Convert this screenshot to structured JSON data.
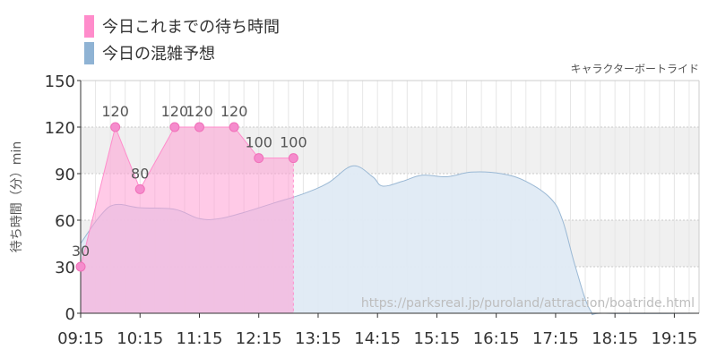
{
  "legend": {
    "items": [
      {
        "label": "今日これまでの待ち時間",
        "color": "#ff8ccb"
      },
      {
        "label": "今日の混雑予想",
        "color": "#8fb3d4"
      }
    ]
  },
  "chart_data": {
    "type": "area",
    "title": "キャラクターボートライド",
    "ylabel": "待ち時間（分）min",
    "xlabel": "",
    "ylim": [
      0,
      150
    ],
    "yticks": [
      0,
      30,
      60,
      90,
      120,
      150
    ],
    "xlim": [
      "09:15",
      "19:40"
    ],
    "xticks": [
      "09:15",
      "10:15",
      "11:15",
      "12:15",
      "13:15",
      "14:15",
      "15:15",
      "16:15",
      "17:15",
      "18:15",
      "19:15"
    ],
    "grid": true,
    "legend_position": "top-left",
    "source_text": "https://parksreal.jp/puroland/attraction/boatride.html",
    "series": [
      {
        "name": "今日これまでの待ち時間",
        "color": "#ff8ccb",
        "fill": "#ffc6e6",
        "points": [
          {
            "x": "09:15",
            "y": 30
          },
          {
            "x": "09:50",
            "y": 120
          },
          {
            "x": "10:15",
            "y": 80
          },
          {
            "x": "10:50",
            "y": 120
          },
          {
            "x": "11:15",
            "y": 120
          },
          {
            "x": "11:50",
            "y": 120
          },
          {
            "x": "12:15",
            "y": 100
          },
          {
            "x": "12:50",
            "y": 100
          }
        ]
      },
      {
        "name": "今日の混雑予想",
        "color": "#9ab8d4",
        "fill": "#dfeaf4",
        "points": [
          {
            "x": "09:15",
            "y": 45
          },
          {
            "x": "09:35",
            "y": 63
          },
          {
            "x": "09:50",
            "y": 70
          },
          {
            "x": "10:15",
            "y": 68
          },
          {
            "x": "10:50",
            "y": 67
          },
          {
            "x": "11:15",
            "y": 61
          },
          {
            "x": "11:35",
            "y": 61
          },
          {
            "x": "12:00",
            "y": 65
          },
          {
            "x": "12:30",
            "y": 71
          },
          {
            "x": "13:00",
            "y": 77
          },
          {
            "x": "13:25",
            "y": 84
          },
          {
            "x": "13:50",
            "y": 95
          },
          {
            "x": "14:10",
            "y": 88
          },
          {
            "x": "14:20",
            "y": 82
          },
          {
            "x": "14:40",
            "y": 85
          },
          {
            "x": "15:00",
            "y": 89
          },
          {
            "x": "15:25",
            "y": 88
          },
          {
            "x": "15:50",
            "y": 91
          },
          {
            "x": "16:20",
            "y": 90
          },
          {
            "x": "16:45",
            "y": 85
          },
          {
            "x": "17:10",
            "y": 74
          },
          {
            "x": "17:22",
            "y": 60
          },
          {
            "x": "17:35",
            "y": 30
          },
          {
            "x": "17:50",
            "y": 2
          },
          {
            "x": "18:05",
            "y": 0
          },
          {
            "x": "19:40",
            "y": 0
          }
        ]
      }
    ]
  }
}
